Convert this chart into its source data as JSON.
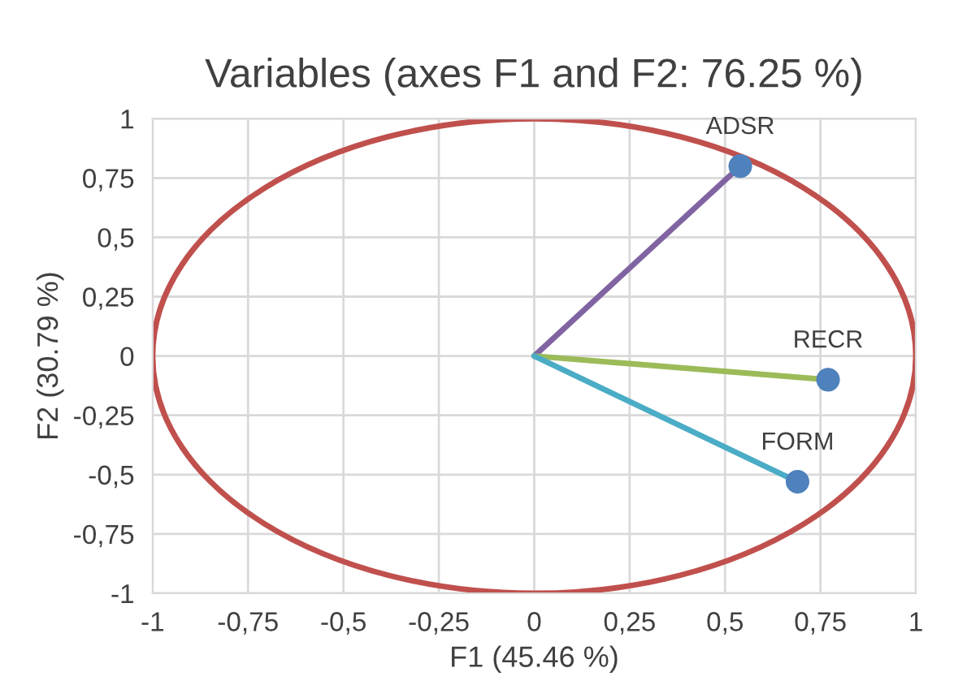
{
  "chart_data": {
    "type": "scatter",
    "title": "Variables (axes F1 and F2: 76.25 %)",
    "xlabel": "F1 (45.46 %)",
    "ylabel": "F2 (30.79 %)",
    "xlim": [
      -1,
      1
    ],
    "ylim": [
      -1,
      1
    ],
    "xticks": [
      -1,
      {
        "value": -0.75,
        "label": "-0,75"
      },
      {
        "value": -0.5,
        "label": "-0,5"
      },
      {
        "value": -0.25,
        "label": "-0,25"
      },
      0,
      {
        "value": 0.25,
        "label": "0,25"
      },
      {
        "value": 0.5,
        "label": "0,5"
      },
      {
        "value": 0.75,
        "label": "0,75"
      },
      1
    ],
    "yticks": [
      -1,
      {
        "value": -0.75,
        "label": "-0,75"
      },
      {
        "value": -0.5,
        "label": "-0,5"
      },
      {
        "value": -0.25,
        "label": "-0,25"
      },
      0,
      {
        "value": 0.25,
        "label": "0,25"
      },
      {
        "value": 0.5,
        "label": "0,5"
      },
      {
        "value": 0.75,
        "label": "0,75"
      },
      1
    ],
    "grid": true,
    "legend": false,
    "series": [
      {
        "type": "line",
        "color": "#8064a2",
        "x": [
          0,
          0.54
        ],
        "values": [
          0,
          0.8
        ]
      },
      {
        "type": "line",
        "color": "#9bbb59",
        "x": [
          0,
          0.77
        ],
        "values": [
          0,
          -0.1
        ]
      },
      {
        "type": "line",
        "color": "#4bacc6",
        "x": [
          0,
          0.69
        ],
        "values": [
          0,
          -0.53
        ]
      },
      {
        "name": "ADSR",
        "color": "#4f81bd",
        "marker": "circle",
        "x": [
          0.54
        ],
        "values": [
          0.8
        ]
      },
      {
        "name": "RECR",
        "color": "#4f81bd",
        "marker": "circle",
        "x": [
          0.77
        ],
        "values": [
          -0.1
        ]
      },
      {
        "name": "FORM",
        "color": "#4f81bd",
        "marker": "circle",
        "x": [
          0.69
        ],
        "values": [
          -0.53
        ]
      }
    ]
  }
}
